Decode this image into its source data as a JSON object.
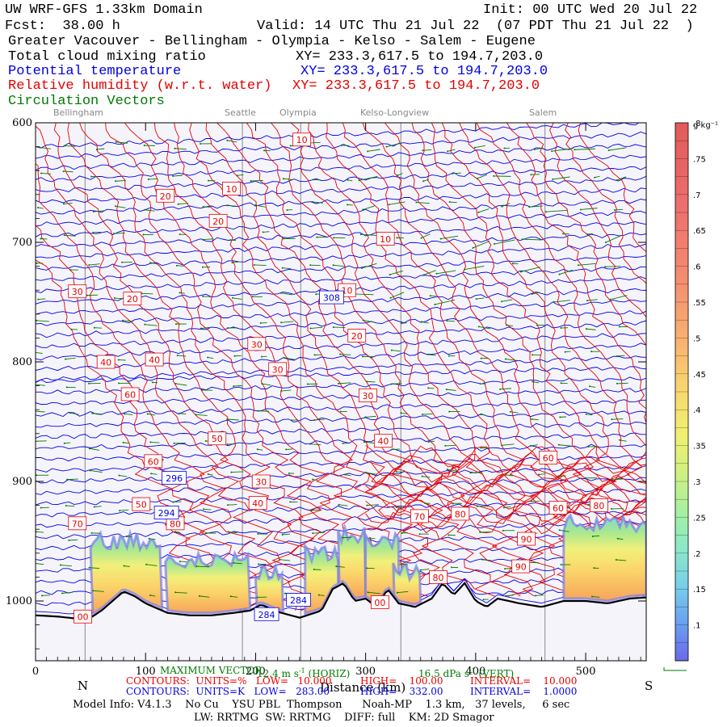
{
  "header": {
    "line1_left": "UW WRF-GFS 1.33km Domain",
    "line1_right": "Init: 00 UTC Wed 20 Jul 22",
    "line2_left": "Fcst:  38.00 h",
    "line2_mid": "Valid: 14 UTC Thu 21 Jul 22  (07 PDT Thu 21 Jul 22  )",
    "region": "Greater Vacouver - Bellingham - Olympia - Kelso - Salem - Eugene",
    "field1": "Total cloud mixing ratio",
    "field1_xy": "XY= 233.3,617.5 to 194.7,203.0",
    "field2": "Potential temperature",
    "field2_xy": "XY= 233.3,617.5 to 194.7,203.0",
    "field3": "Relative humidity (w.r.t. water)",
    "field3_xy": "XY= 233.3,617.5 to 194.7,203.0",
    "field4": "Circulation Vectors"
  },
  "colors": {
    "blue": "#0000e6",
    "red": "#e60000",
    "green": "#007a00",
    "gray": "#888888"
  },
  "cities": [
    "Bellingham",
    "Seattle",
    "Olympia",
    "Kelso-Longview",
    "Salem"
  ],
  "footer": {
    "left_dir": "N",
    "right_dir": "S",
    "xlabel": "Distance (km)",
    "max_vector": "MAXIMUM VECTOR",
    "max_vector_vals": "12.4 m s",
    "horiz": "(HORIZ)",
    "vert_vals": "16.5 dPa s",
    "vert": "(VERT)",
    "rh_contours": "CONTOURS:  UNITS=%   LOW=   10.000",
    "rh_high": "HIGH=    100.00",
    "rh_interval": "INTERVAL=    10.000",
    "th_contours": "CONTOURS:  UNITS=K   LOW=   283.00",
    "th_high": "HIGH=    332.00",
    "th_interval": "INTERVAL=    1.0000",
    "model_info": "Model Info: V4.1.3    No Cu    YSU PBL  Thompson      Noah-MP    1.3 km,   37 levels,     6 sec",
    "model_info2": "LW: RRTMG  SW: RRTMG    DIFF: full    KM: 2D Smagor"
  },
  "chart_data": {
    "type": "cross-section",
    "xlabel": "Distance (km)",
    "ylabel": "",
    "xlim": [
      0,
      555
    ],
    "ylim": [
      1050,
      600
    ],
    "x_ticks": [
      0,
      100,
      200,
      300,
      400,
      500
    ],
    "y_ticks": [
      600,
      700,
      800,
      900,
      1000
    ],
    "y_tick_labels": [
      "600",
      "700",
      "800",
      "900",
      "1000"
    ],
    "city_positions_km": [
      45,
      188,
      241,
      332,
      463
    ],
    "terrain_pressure": [
      [
        0,
        1012
      ],
      [
        20,
        1013
      ],
      [
        40,
        1015
      ],
      [
        50,
        1014
      ],
      [
        60,
        1008
      ],
      [
        70,
        1000
      ],
      [
        80,
        992
      ],
      [
        90,
        996
      ],
      [
        100,
        1002
      ],
      [
        120,
        1010
      ],
      [
        140,
        1012
      ],
      [
        160,
        1012
      ],
      [
        180,
        1010
      ],
      [
        195,
        1008
      ],
      [
        205,
        1003
      ],
      [
        220,
        1009
      ],
      [
        240,
        1014
      ],
      [
        260,
        1008
      ],
      [
        270,
        990
      ],
      [
        280,
        985
      ],
      [
        290,
        1000
      ],
      [
        300,
        998
      ],
      [
        310,
        1005
      ],
      [
        320,
        990
      ],
      [
        330,
        1002
      ],
      [
        345,
        1005
      ],
      [
        360,
        998
      ],
      [
        370,
        985
      ],
      [
        380,
        995
      ],
      [
        390,
        985
      ],
      [
        400,
        1000
      ],
      [
        410,
        1005
      ],
      [
        420,
        998
      ],
      [
        440,
        1002
      ],
      [
        460,
        1005
      ],
      [
        480,
        1000
      ],
      [
        500,
        1000
      ],
      [
        520,
        1002
      ],
      [
        540,
        998
      ],
      [
        555,
        997
      ]
    ],
    "colorbar": {
      "unit": "g kg⁻¹",
      "ticks": [
        ".1",
        ".15",
        ".2",
        ".25",
        ".3",
        ".35",
        ".4",
        ".45",
        ".5",
        ".55",
        ".6",
        ".65",
        ".7",
        ".75",
        ".8"
      ]
    },
    "rh_labels": [
      {
        "text": "10",
        "x": 242,
        "p": 614
      },
      {
        "text": "10",
        "x": 178,
        "p": 655
      },
      {
        "text": "20",
        "x": 118,
        "p": 661
      },
      {
        "text": "20",
        "x": 166,
        "p": 682
      },
      {
        "text": "10",
        "x": 318,
        "p": 697
      },
      {
        "text": "30",
        "x": 38,
        "p": 741
      },
      {
        "text": "20",
        "x": 88,
        "p": 747
      },
      {
        "text": "10",
        "x": 283,
        "p": 740
      },
      {
        "text": "20",
        "x": 292,
        "p": 778
      },
      {
        "text": "30",
        "x": 201,
        "p": 785
      },
      {
        "text": "40",
        "x": 64,
        "p": 800
      },
      {
        "text": "40",
        "x": 108,
        "p": 798
      },
      {
        "text": "30",
        "x": 220,
        "p": 806
      },
      {
        "text": "60",
        "x": 86,
        "p": 827
      },
      {
        "text": "30",
        "x": 302,
        "p": 828
      },
      {
        "text": "50",
        "x": 165,
        "p": 864
      },
      {
        "text": "40",
        "x": 316,
        "p": 866
      },
      {
        "text": "60",
        "x": 107,
        "p": 883
      },
      {
        "text": "30",
        "x": 205,
        "p": 900
      },
      {
        "text": "60",
        "x": 466,
        "p": 880
      },
      {
        "text": "50",
        "x": 96,
        "p": 919
      },
      {
        "text": "40",
        "x": 202,
        "p": 918
      },
      {
        "text": "80",
        "x": 127,
        "p": 935
      },
      {
        "text": "70",
        "x": 38,
        "p": 935
      },
      {
        "text": "70",
        "x": 349,
        "p": 929
      },
      {
        "text": "80",
        "x": 386,
        "p": 927
      },
      {
        "text": "60",
        "x": 475,
        "p": 922
      },
      {
        "text": "80",
        "x": 512,
        "p": 920
      },
      {
        "text": "90",
        "x": 446,
        "p": 948
      },
      {
        "text": "90",
        "x": 441,
        "p": 971
      },
      {
        "text": "80",
        "x": 366,
        "p": 980
      },
      {
        "text": "00",
        "x": 313,
        "p": 1001
      },
      {
        "text": "00",
        "x": 43,
        "p": 1013
      }
    ],
    "theta_labels": [
      {
        "text": "308",
        "x": 269,
        "p": 746
      },
      {
        "text": "296",
        "x": 126,
        "p": 897
      },
      {
        "text": "294",
        "x": 119,
        "p": 926
      },
      {
        "text": "284",
        "x": 239,
        "p": 999
      },
      {
        "text": "284",
        "x": 210,
        "p": 1011
      }
    ]
  }
}
